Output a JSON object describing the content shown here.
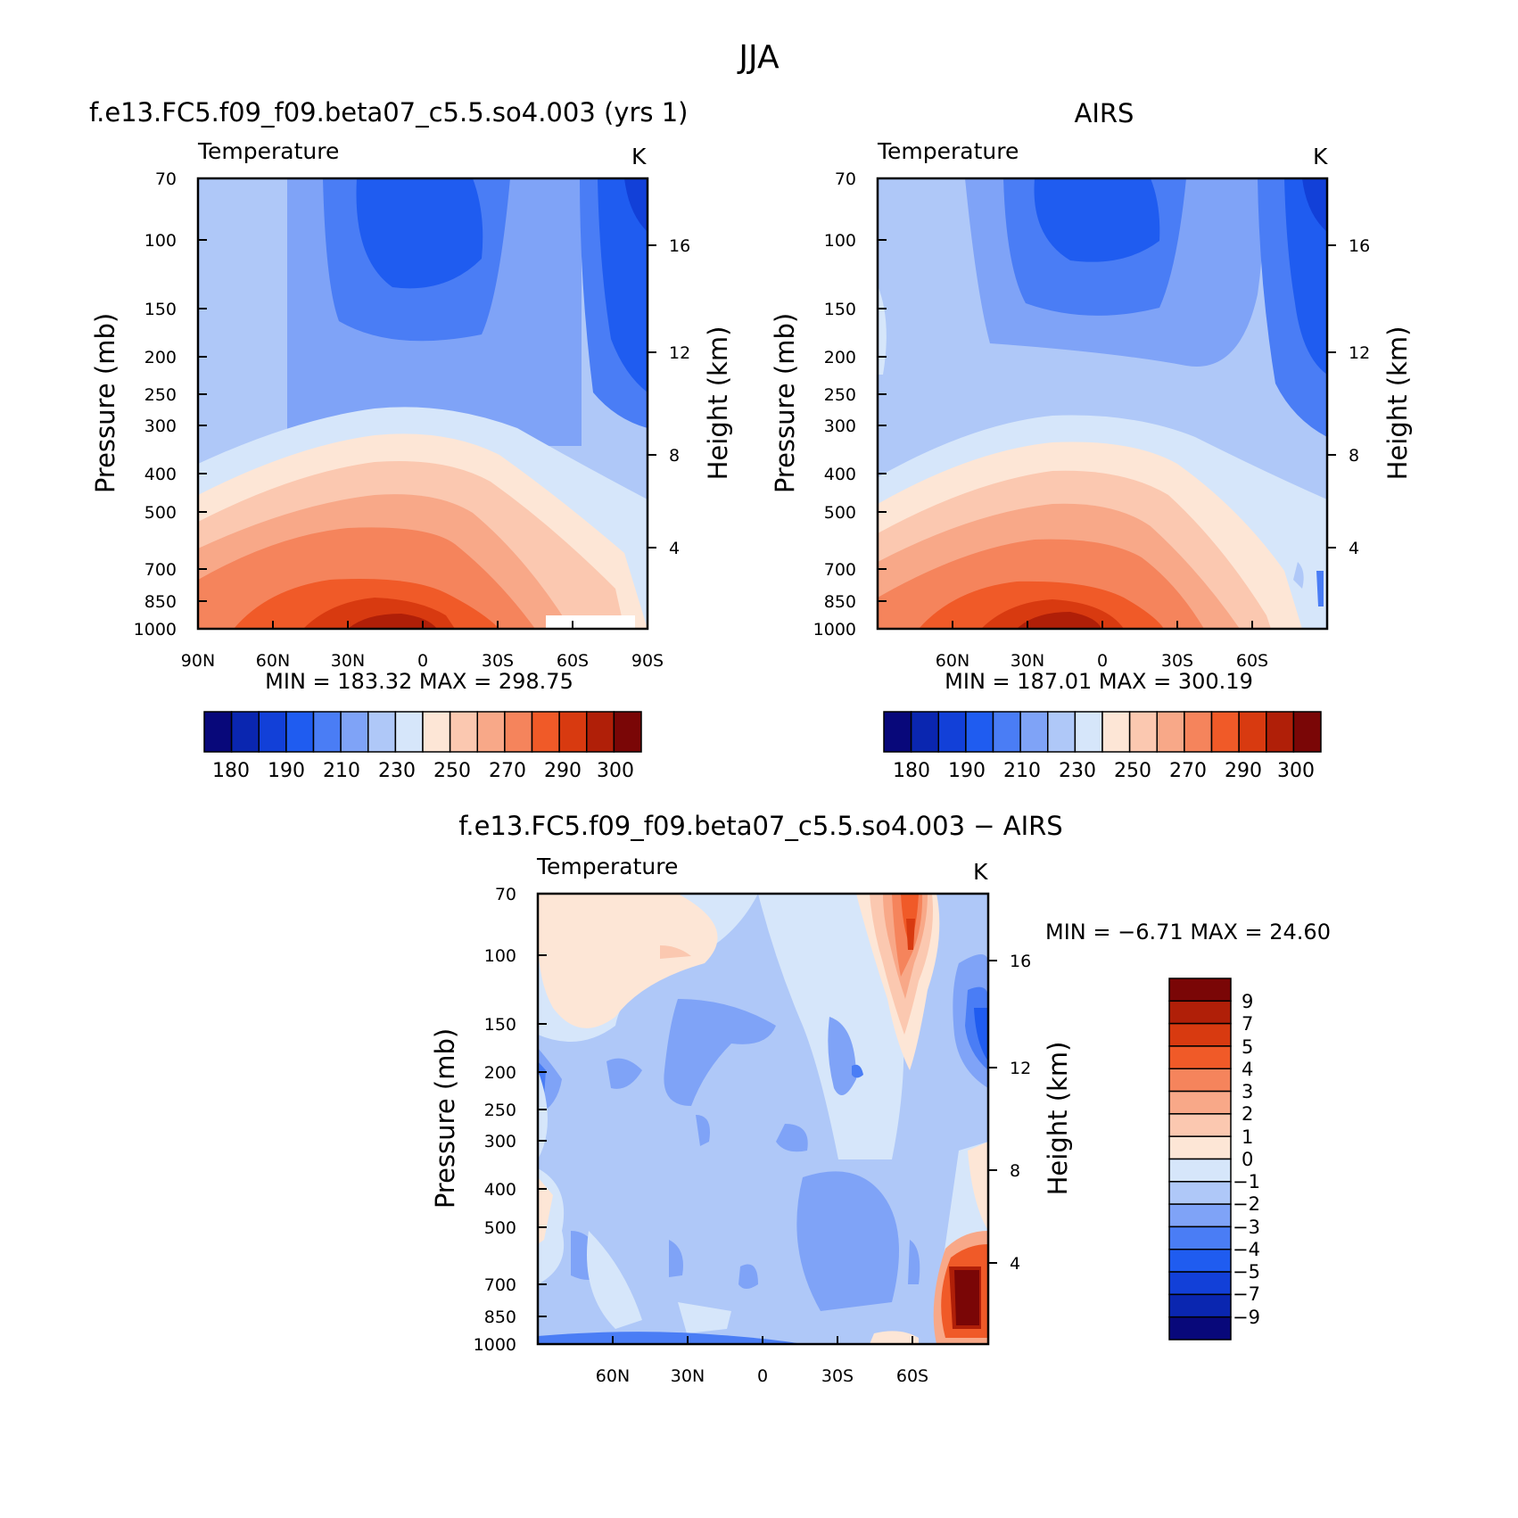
{
  "figure_title": "JJA",
  "chart_data": [
    {
      "type": "heatmap",
      "id": "model",
      "title": "f.e13.FC5.f09_f09.beta07_c5.5.so4.003 (yrs 1)",
      "variable": "Temperature",
      "units": "K",
      "xlabel": "",
      "ylabel": "Pressure (mb)",
      "ylabel_right": "Height (km)",
      "x_ticks": [
        "90N",
        "60N",
        "30N",
        "0",
        "30S",
        "60S",
        "90S"
      ],
      "y_ticks": [
        "70",
        "100",
        "150",
        "200",
        "250",
        "300",
        "400",
        "500",
        "700",
        "850",
        "1000"
      ],
      "y_ticks_right": [
        "16",
        "12",
        "8",
        "4"
      ],
      "stats": {
        "min_label": "MIN",
        "min": "183.32",
        "max_label": "MAX",
        "max": "298.75"
      },
      "colorbar_labels": [
        "180",
        "190",
        "210",
        "230",
        "250",
        "270",
        "290",
        "300"
      ]
    },
    {
      "type": "heatmap",
      "id": "obs",
      "title": "AIRS",
      "variable": "Temperature",
      "units": "K",
      "xlabel": "",
      "ylabel": "Pressure (mb)",
      "ylabel_right": "Height (km)",
      "x_ticks": [
        "60N",
        "30N",
        "0",
        "30S",
        "60S"
      ],
      "y_ticks": [
        "70",
        "100",
        "150",
        "200",
        "250",
        "300",
        "400",
        "500",
        "700",
        "850",
        "1000"
      ],
      "y_ticks_right": [
        "16",
        "12",
        "8",
        "4"
      ],
      "stats": {
        "min_label": "MIN",
        "min": "187.01",
        "max_label": "MAX",
        "max": "300.19"
      },
      "colorbar_labels": [
        "180",
        "190",
        "210",
        "230",
        "250",
        "270",
        "290",
        "300"
      ]
    },
    {
      "type": "heatmap",
      "id": "diff",
      "title": "f.e13.FC5.f09_f09.beta07_c5.5.so4.003 − AIRS",
      "variable": "Temperature",
      "units": "K",
      "xlabel": "",
      "ylabel": "Pressure (mb)",
      "ylabel_right": "Height (km)",
      "x_ticks": [
        "60N",
        "30N",
        "0",
        "30S",
        "60S"
      ],
      "y_ticks": [
        "70",
        "100",
        "150",
        "200",
        "250",
        "300",
        "400",
        "500",
        "700",
        "850",
        "1000"
      ],
      "y_ticks_right": [
        "16",
        "12",
        "8",
        "4"
      ],
      "stats": {
        "min_label": "MIN",
        "min": "−6.71",
        "max_label": "MAX",
        "max": "24.60"
      },
      "colorbar_labels": [
        "9",
        "7",
        "5",
        "4",
        "3",
        "2",
        "1",
        "0",
        "−1",
        "−2",
        "−3",
        "−4",
        "−5",
        "−7",
        "−9"
      ]
    }
  ],
  "colors": {
    "temp_scale": [
      "#08087a",
      "#0a26b0",
      "#1240d8",
      "#1f5cf0",
      "#4a7df5",
      "#7fa3f7",
      "#afc8f8",
      "#d6e6fa",
      "#fde6d6",
      "#fbc8b0",
      "#f8a888",
      "#f5845c",
      "#f05a28",
      "#d83a10",
      "#b01f08",
      "#7a0606"
    ],
    "diff_scale": [
      "#08087a",
      "#0a26b0",
      "#1240d8",
      "#1f5cf0",
      "#4a7df5",
      "#7fa3f7",
      "#afc8f8",
      "#d6e6fa",
      "#fde6d6",
      "#fbc8b0",
      "#f8a888",
      "#f5845c",
      "#f05a28",
      "#d83a10",
      "#b01f08",
      "#7a0606"
    ]
  }
}
